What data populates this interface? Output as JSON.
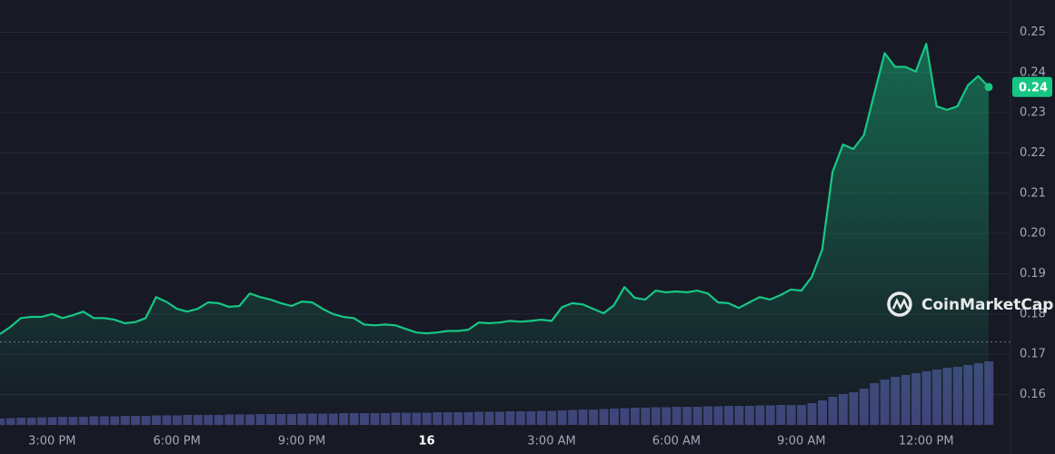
{
  "chart_data": {
    "type": "line",
    "color": "#16c784",
    "volume_color": "#3f4479",
    "watermark": "CoinMarketCap",
    "ylim": [
      0.152,
      0.258
    ],
    "yticks": [
      0.16,
      0.17,
      0.18,
      0.19,
      {
        "value": 0.2,
        "label": "0.20"
      },
      0.21,
      0.22,
      0.23,
      0.24,
      0.25
    ],
    "xlim": [
      0,
      95
    ],
    "xticks": [
      {
        "value": 5,
        "label": "3:00 PM"
      },
      {
        "value": 17,
        "label": "6:00 PM"
      },
      {
        "value": 29,
        "label": "9:00 PM"
      },
      {
        "value": 41,
        "label": "16"
      },
      {
        "value": 53,
        "label": "3:00 AM"
      },
      {
        "value": 65,
        "label": "6:00 AM"
      },
      {
        "value": 77,
        "label": "9:00 AM"
      },
      {
        "value": 89,
        "label": "12:00 PM"
      }
    ],
    "grid": true,
    "baseline": 0.1731,
    "values": [
      0.175,
      0.1768,
      0.179,
      0.1793,
      0.1793,
      0.18,
      0.179,
      0.1797,
      0.1806,
      0.179,
      0.179,
      0.1786,
      0.1777,
      0.178,
      0.179,
      0.1842,
      0.183,
      0.1813,
      0.1806,
      0.1813,
      0.1829,
      0.1827,
      0.1818,
      0.182,
      0.1851,
      0.1842,
      0.1836,
      0.1827,
      0.182,
      0.1831,
      0.1829,
      0.1813,
      0.18,
      0.1793,
      0.179,
      0.1774,
      0.1772,
      0.1774,
      0.1772,
      0.1763,
      0.1754,
      0.1752,
      0.1754,
      0.1758,
      0.1758,
      0.1761,
      0.1779,
      0.1777,
      0.1779,
      0.1783,
      0.1781,
      0.1783,
      0.1786,
      0.1783,
      0.1817,
      0.1827,
      0.1824,
      0.1813,
      0.1802,
      0.1822,
      0.1867,
      0.184,
      0.1836,
      0.1858,
      0.1854,
      0.1856,
      0.1854,
      0.1858,
      0.1851,
      0.1829,
      0.1827,
      0.1815,
      0.1829,
      0.1842,
      0.1836,
      0.1847,
      0.1861,
      0.1858,
      0.1892,
      0.196,
      0.2153,
      0.2221,
      0.221,
      0.2244,
      0.2346,
      0.2448,
      0.2414,
      0.2414,
      0.2402,
      0.2471,
      0.2316,
      0.2307,
      0.2316,
      0.2368,
      0.2391,
      0.2364
    ],
    "current_label": "0.24",
    "volume": [
      7,
      7.5,
      8,
      8,
      8.5,
      8.5,
      9,
      9,
      9,
      9.5,
      9.5,
      9.5,
      10,
      10,
      10,
      10.5,
      10.5,
      10.5,
      11,
      11,
      11,
      11,
      11.5,
      11.5,
      11.5,
      12,
      12,
      12,
      12,
      12.5,
      12.5,
      12.5,
      12.5,
      13,
      13,
      13,
      13,
      13,
      13.5,
      13.5,
      13.5,
      13.5,
      14,
      14,
      14,
      14,
      14.5,
      14.5,
      14.5,
      15,
      15,
      15,
      15.5,
      15.5,
      16,
      16.5,
      17,
      17,
      17.5,
      18,
      18.5,
      19,
      19,
      19.5,
      19.5,
      20,
      20,
      20,
      20.5,
      20.5,
      21,
      21,
      21,
      21.5,
      21.5,
      22,
      22,
      22,
      24,
      27,
      31,
      34,
      36,
      40,
      46,
      50,
      53,
      55,
      57,
      59,
      61,
      63,
      64,
      66,
      68,
      70
    ]
  }
}
